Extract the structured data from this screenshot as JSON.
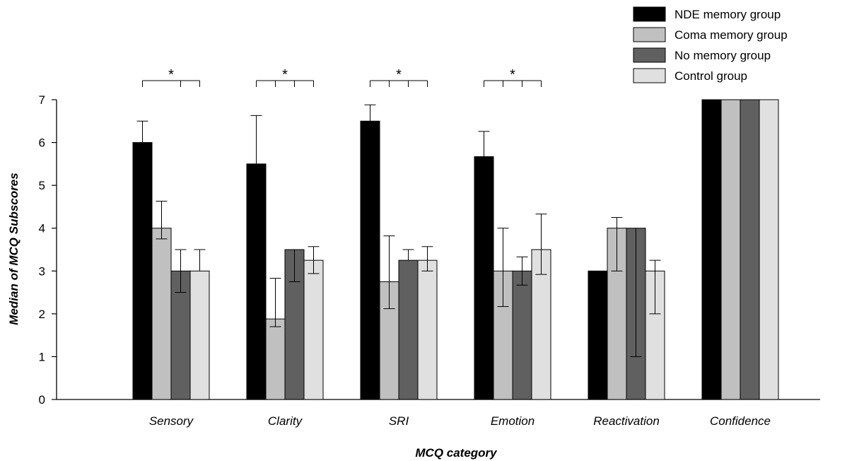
{
  "chart_data": {
    "type": "bar",
    "xlabel": "MCQ category",
    "ylabel": "Median of MCQ Subscores",
    "ylim": [
      0,
      7
    ],
    "yticks": [
      0,
      1,
      2,
      3,
      4,
      5,
      6,
      7
    ],
    "grid": false,
    "legend_position": "top-right",
    "categories": [
      "Sensory",
      "Clarity",
      "SRI",
      "Emotion",
      "Reactivation",
      "Confidence"
    ],
    "series": [
      {
        "name": "NDE memory group",
        "color": "#000000",
        "values": [
          6,
          5.5,
          6.5,
          5.67,
          3,
          7
        ],
        "error_high": [
          6.5,
          6.63,
          6.88,
          6.26,
          null,
          null
        ],
        "error_low": [
          null,
          null,
          null,
          null,
          null,
          null
        ]
      },
      {
        "name": "Coma memory group",
        "color": "#c0c0c0",
        "values": [
          4,
          1.88,
          2.75,
          3,
          4,
          7
        ],
        "error_high": [
          4.63,
          2.83,
          3.82,
          4,
          4.25,
          null
        ],
        "error_low": [
          3.75,
          1.7,
          2.12,
          2.17,
          3,
          null
        ]
      },
      {
        "name": "No memory group",
        "color": "#606060",
        "values": [
          3,
          3.5,
          3.25,
          3,
          4,
          7
        ],
        "error_high": [
          3.5,
          null,
          3.5,
          3.33,
          null,
          null
        ],
        "error_low": [
          2.5,
          2.75,
          null,
          2.67,
          1,
          null
        ]
      },
      {
        "name": "Control group",
        "color": "#e0e0e0",
        "values": [
          3,
          3.25,
          3.25,
          3.5,
          3,
          7
        ],
        "error_high": [
          3.5,
          3.57,
          3.57,
          4.33,
          3.25,
          null
        ],
        "error_low": [
          null,
          2.94,
          3,
          2.92,
          2,
          null
        ]
      }
    ],
    "annotations": [
      {
        "category": "Sensory",
        "text": "*"
      },
      {
        "category": "Clarity",
        "text": "*"
      },
      {
        "category": "SRI",
        "text": "*"
      },
      {
        "category": "Emotion",
        "text": "*"
      }
    ]
  }
}
